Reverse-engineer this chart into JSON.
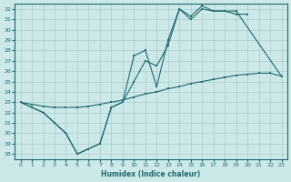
{
  "xlabel": "Humidex (Indice chaleur)",
  "bg_color": "#cce8e8",
  "grid_color": "#aacccc",
  "line_color": "#1a6b6b",
  "xlim": [
    -0.5,
    23.5
  ],
  "ylim": [
    17.5,
    32.5
  ],
  "xticks": [
    0,
    1,
    2,
    3,
    4,
    5,
    6,
    7,
    8,
    9,
    10,
    11,
    12,
    13,
    14,
    15,
    16,
    17,
    18,
    19,
    20,
    21,
    22,
    23
  ],
  "yticks": [
    18,
    19,
    20,
    21,
    22,
    23,
    24,
    25,
    26,
    27,
    28,
    29,
    30,
    31,
    32
  ],
  "line1_x": [
    0,
    1,
    2,
    3,
    4,
    5,
    6,
    7,
    8,
    9,
    10,
    11,
    12,
    13,
    14,
    15,
    16,
    17,
    18,
    19,
    20
  ],
  "line1_y": [
    23.0,
    22.5,
    22.0,
    21.0,
    20.0,
    18.0,
    18.5,
    19.0,
    22.5,
    23.0,
    25.0,
    27.0,
    26.5,
    28.5,
    32.0,
    31.0,
    32.0,
    31.8,
    31.8,
    31.5,
    31.5
  ],
  "line2_x": [
    0,
    1,
    2,
    3,
    4,
    5,
    6,
    7,
    8,
    9,
    10,
    11,
    12,
    13,
    14,
    15,
    16,
    17,
    18,
    19,
    23
  ],
  "line2_y": [
    23.0,
    22.5,
    22.0,
    21.0,
    20.0,
    18.0,
    18.5,
    19.0,
    22.5,
    23.0,
    27.5,
    28.0,
    24.5,
    29.0,
    32.0,
    31.3,
    32.3,
    31.8,
    31.8,
    31.8,
    25.5
  ],
  "line3_x": [
    0,
    1,
    2,
    3,
    4,
    5,
    6,
    7,
    8,
    9,
    10,
    11,
    12,
    13,
    14,
    15,
    16,
    17,
    18,
    19,
    20,
    21,
    22,
    23
  ],
  "line3_y": [
    23.0,
    22.8,
    22.6,
    22.5,
    22.5,
    22.5,
    22.6,
    22.8,
    23.0,
    23.2,
    23.5,
    23.8,
    24.0,
    24.3,
    24.5,
    24.8,
    25.0,
    25.2,
    25.4,
    25.6,
    25.7,
    25.8,
    25.8,
    25.5
  ]
}
